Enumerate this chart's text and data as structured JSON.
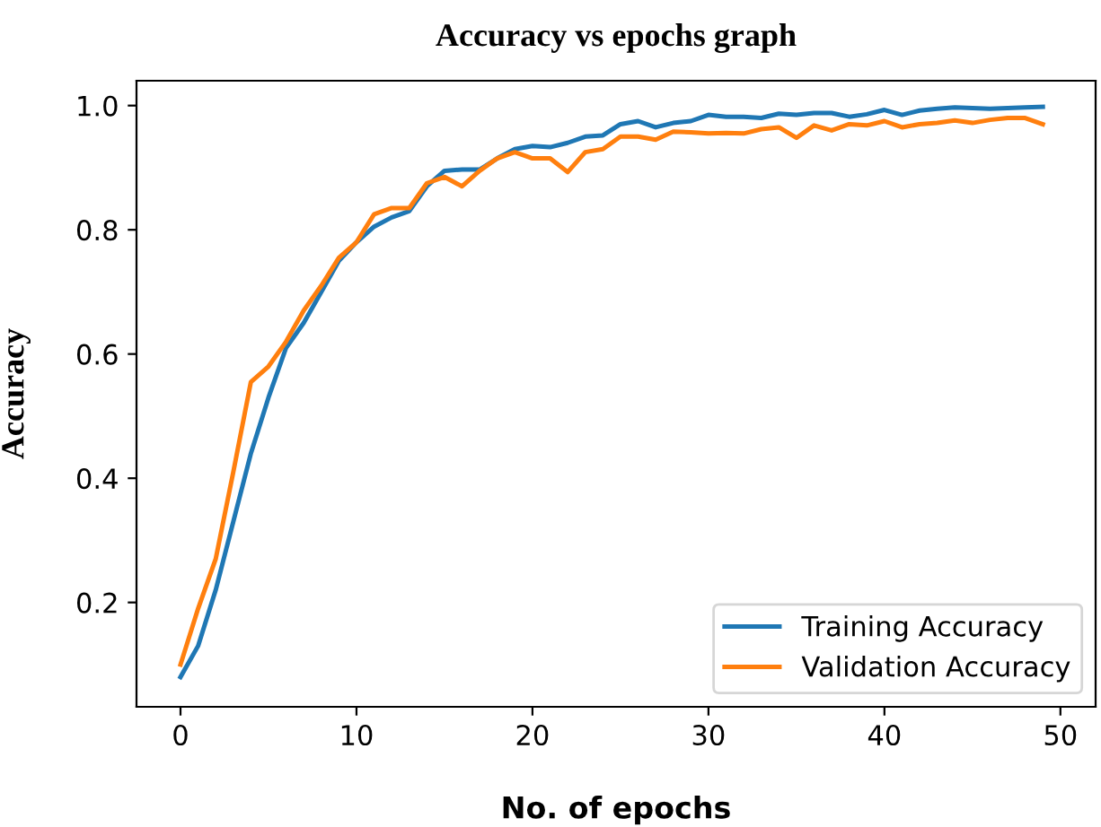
{
  "chart_data": {
    "type": "line",
    "title": "Accuracy vs epochs graph",
    "xlabel": "No. of epochs",
    "ylabel": "Accuracy",
    "x": [
      0,
      1,
      2,
      3,
      4,
      5,
      6,
      7,
      8,
      9,
      10,
      11,
      12,
      13,
      14,
      15,
      16,
      17,
      18,
      19,
      20,
      21,
      22,
      23,
      24,
      25,
      26,
      27,
      28,
      29,
      30,
      31,
      32,
      33,
      34,
      35,
      36,
      37,
      38,
      39,
      40,
      41,
      42,
      43,
      44,
      45,
      46,
      47,
      48,
      49
    ],
    "series": [
      {
        "name": "Training Accuracy",
        "color": "#1f77b4",
        "values": [
          0.08,
          0.13,
          0.22,
          0.33,
          0.44,
          0.53,
          0.61,
          0.65,
          0.7,
          0.75,
          0.78,
          0.805,
          0.82,
          0.83,
          0.87,
          0.895,
          0.897,
          0.897,
          0.915,
          0.93,
          0.935,
          0.933,
          0.94,
          0.95,
          0.952,
          0.97,
          0.975,
          0.965,
          0.972,
          0.975,
          0.985,
          0.982,
          0.982,
          0.98,
          0.987,
          0.985,
          0.988,
          0.988,
          0.982,
          0.986,
          0.993,
          0.985,
          0.992,
          0.995,
          0.997,
          0.996,
          0.995,
          0.996,
          0.997,
          0.998
        ]
      },
      {
        "name": "Validation Accuracy",
        "color": "#ff7f0e",
        "values": [
          0.1,
          0.19,
          0.27,
          0.41,
          0.555,
          0.58,
          0.62,
          0.67,
          0.71,
          0.755,
          0.78,
          0.825,
          0.835,
          0.835,
          0.875,
          0.885,
          0.87,
          0.895,
          0.915,
          0.925,
          0.915,
          0.915,
          0.893,
          0.925,
          0.93,
          0.95,
          0.95,
          0.945,
          0.958,
          0.957,
          0.955,
          0.956,
          0.955,
          0.962,
          0.965,
          0.948,
          0.968,
          0.96,
          0.97,
          0.968,
          0.975,
          0.965,
          0.97,
          0.972,
          0.976,
          0.972,
          0.977,
          0.98,
          0.98,
          0.97
        ]
      }
    ],
    "xlim": [
      -2.5,
      52
    ],
    "ylim": [
      0.032,
      1.04
    ],
    "xticks": [
      0,
      10,
      20,
      30,
      40,
      50
    ],
    "yticks": [
      0.2,
      0.4,
      0.6,
      0.8,
      {
        "value": 1,
        "label": "1.0"
      }
    ],
    "legend": "bottom right",
    "grid": false,
    "marker": "none",
    "line_style": "solid"
  }
}
